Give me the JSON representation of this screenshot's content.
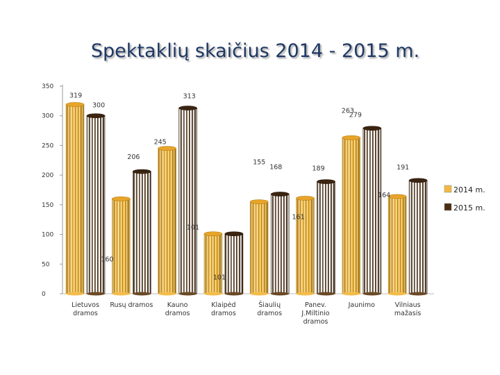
{
  "chart_data": {
    "type": "bar",
    "title": "Spektaklių skaičius 2014 - 2015 m.",
    "categories": [
      [
        "Lietuvos",
        "dramos"
      ],
      [
        "Rusų dramos"
      ],
      [
        "Kauno",
        "dramos"
      ],
      [
        "Klaipėd",
        "dramos"
      ],
      [
        "Šiaulių",
        "dramos"
      ],
      [
        "Panev.",
        "J.Miltinio",
        "dramos"
      ],
      [
        "Jaunimo"
      ],
      [
        "Vilniaus",
        "mažasis"
      ]
    ],
    "series": [
      {
        "name": "2014 m.",
        "color": "#f5b942",
        "values": [
          319,
          160,
          245,
          101,
          155,
          161,
          263,
          164
        ]
      },
      {
        "name": "2015 m.",
        "color": "#4a2e12",
        "values": [
          300,
          206,
          313,
          101,
          168,
          189,
          279,
          191
        ]
      }
    ],
    "ylim": [
      0,
      350
    ],
    "yticks": [
      0,
      50,
      100,
      150,
      200,
      250,
      300,
      350
    ],
    "xlabel": "",
    "ylabel": ""
  }
}
